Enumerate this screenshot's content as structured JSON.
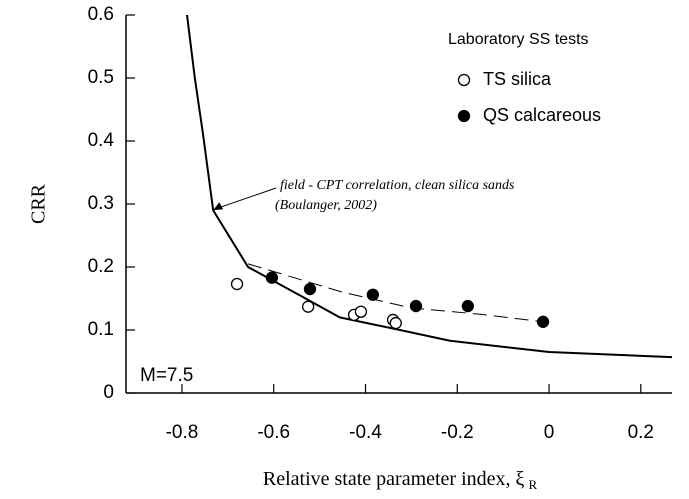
{
  "chart_data": {
    "type": "scatter",
    "xlabel": "Relative state parameter index, ξ",
    "xlabel_subscript": "R",
    "ylabel": "CRR",
    "xlim": [
      -0.922,
      0.268
    ],
    "ylim": [
      0,
      0.6
    ],
    "xticks": [
      -0.8,
      -0.6,
      -0.4,
      -0.2,
      0,
      0.2
    ],
    "yticks": [
      0,
      0.1,
      0.2,
      0.3,
      0.4,
      0.5,
      0.6
    ],
    "legend_title": "Laboratory SS tests",
    "legend_position": "upper right",
    "box_label": "M=7.5",
    "annotation": [
      "field - CPT correlation, clean silica sands",
      "(Boulanger, 2002)"
    ],
    "annotation_point": [
      -0.732,
      0.29
    ],
    "series": [
      {
        "name": "TS silica",
        "color": "#000000",
        "filled": false,
        "x": [
          -0.68,
          -0.525,
          -0.425,
          -0.41,
          -0.34,
          -0.334
        ],
        "y": [
          0.173,
          0.137,
          0.124,
          0.129,
          0.116,
          0.111
        ]
      },
      {
        "name": "QS calcareous",
        "color": "#000000",
        "filled": true,
        "x": [
          -0.604,
          -0.521,
          -0.384,
          -0.29,
          -0.177,
          -0.013
        ],
        "y": [
          0.183,
          0.165,
          0.156,
          0.138,
          0.138,
          0.113
        ]
      }
    ],
    "lines": [
      {
        "style": "solid",
        "color": "#000000",
        "x": [
          -0.789,
          -0.772,
          -0.754,
          -0.732,
          -0.656,
          -0.543,
          -0.456,
          -0.325,
          -0.216,
          0,
          0.268
        ],
        "y": [
          0.6,
          0.5,
          0.41,
          0.29,
          0.2,
          0.155,
          0.12,
          0.1,
          0.083,
          0.065,
          0.057
        ]
      },
      {
        "style": "dashed",
        "color": "#000000",
        "x": [
          -0.656,
          -0.45,
          -0.3,
          -0.15,
          -0.013
        ],
        "y": [
          0.205,
          0.16,
          0.135,
          0.125,
          0.113
        ]
      }
    ]
  }
}
